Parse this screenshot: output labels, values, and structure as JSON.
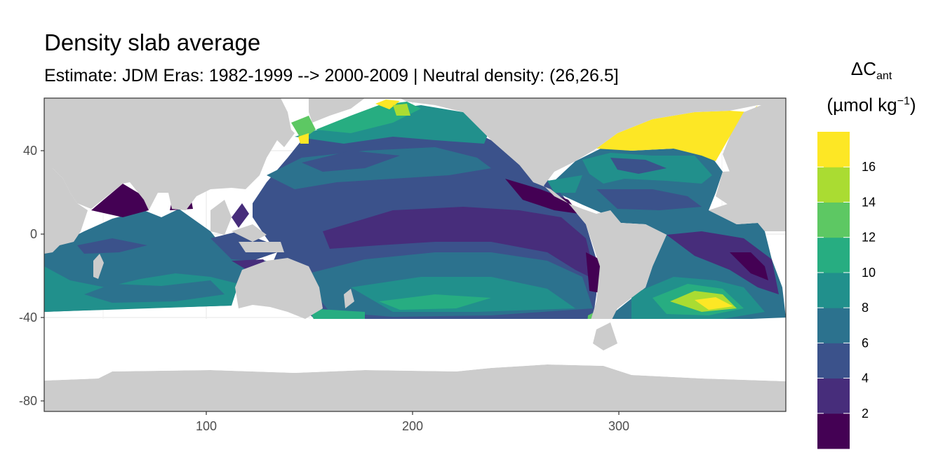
{
  "title": "Density slab average",
  "subtitle": "Estimate: JDM Eras: 1982-1999 --> 2000-2009 | Neutral density: (26,26.5]",
  "legend": {
    "title_main": "ΔC",
    "title_sub": "ant",
    "unit_main": "(µmol kg",
    "unit_sup": "−1",
    "unit_close": ")",
    "bins": [
      {
        "from": 0,
        "to": 2,
        "color": "#440154"
      },
      {
        "from": 2,
        "to": 4,
        "color": "#472D7B"
      },
      {
        "from": 4,
        "to": 6,
        "color": "#3B528B"
      },
      {
        "from": 6,
        "to": 8,
        "color": "#2C728E"
      },
      {
        "from": 8,
        "to": 10,
        "color": "#21908C"
      },
      {
        "from": 10,
        "to": 12,
        "color": "#27AD81"
      },
      {
        "from": 12,
        "to": 14,
        "color": "#5DC863"
      },
      {
        "from": 14,
        "to": 16,
        "color": "#AADC32"
      },
      {
        "from": 16,
        "to": 18,
        "color": "#FDE725"
      }
    ],
    "tick_labels": [
      "2",
      "4",
      "6",
      "8",
      "10",
      "12",
      "14",
      "16"
    ]
  },
  "map": {
    "x_ticks": [
      "100",
      "200",
      "300"
    ],
    "y_ticks": [
      "40",
      "0",
      "-40",
      "-80"
    ],
    "land_color": "#CCCCCC",
    "panel_bg": "#FFFFFF",
    "grid_color": "#EBEBEB"
  }
}
